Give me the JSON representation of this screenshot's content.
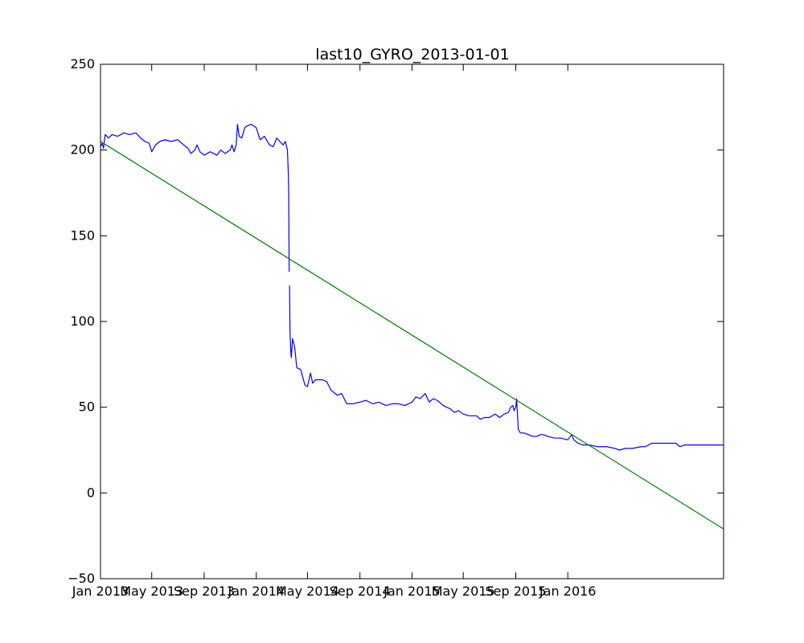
{
  "chart_data": {
    "type": "line",
    "title": "last10_GYRO_2013-01-01",
    "xlabel": "",
    "ylabel": "",
    "x_axis_type": "date",
    "xlim": [
      "2013-01-01",
      "2016-12-31"
    ],
    "ylim": [
      -50,
      250
    ],
    "grid": false,
    "legend": "none",
    "x_ticks": [
      {
        "date": "2013-01-01",
        "label": "Jan 2013"
      },
      {
        "date": "2013-05-01",
        "label": "May 2013"
      },
      {
        "date": "2013-09-01",
        "label": "Sep 2013"
      },
      {
        "date": "2014-01-01",
        "label": "Jan 2014"
      },
      {
        "date": "2014-05-01",
        "label": "May 2014"
      },
      {
        "date": "2014-09-01",
        "label": "Sep 2014"
      },
      {
        "date": "2015-01-01",
        "label": "Jan 2015"
      },
      {
        "date": "2015-05-01",
        "label": "May 2015"
      },
      {
        "date": "2015-09-01",
        "label": "Sep 2015"
      },
      {
        "date": "2016-01-01",
        "label": "Jan 2016"
      }
    ],
    "y_ticks": [
      {
        "value": -50,
        "label": "−50"
      },
      {
        "value": 0,
        "label": "0"
      },
      {
        "value": 50,
        "label": "50"
      },
      {
        "value": 100,
        "label": "100"
      },
      {
        "value": 150,
        "label": "150"
      },
      {
        "value": 200,
        "label": "200"
      },
      {
        "value": 250,
        "label": "250"
      }
    ],
    "series": [
      {
        "color": "#0000ff",
        "points": [
          [
            "2013-01-01",
            202
          ],
          [
            "2013-01-05",
            204
          ],
          [
            "2013-01-08",
            201
          ],
          [
            "2013-01-12",
            209
          ],
          [
            "2013-01-20",
            207
          ],
          [
            "2013-01-28",
            209
          ],
          [
            "2013-02-10",
            208
          ],
          [
            "2013-02-25",
            210
          ],
          [
            "2013-03-10",
            209
          ],
          [
            "2013-03-25",
            210
          ],
          [
            "2013-04-05",
            207
          ],
          [
            "2013-04-15",
            205
          ],
          [
            "2013-04-25",
            204
          ],
          [
            "2013-05-01",
            199
          ],
          [
            "2013-05-10",
            203
          ],
          [
            "2013-05-20",
            205
          ],
          [
            "2013-06-01",
            206
          ],
          [
            "2013-06-15",
            205
          ],
          [
            "2013-07-01",
            206
          ],
          [
            "2013-07-15",
            203
          ],
          [
            "2013-07-25",
            201
          ],
          [
            "2013-08-01",
            198
          ],
          [
            "2013-08-10",
            200
          ],
          [
            "2013-08-15",
            203
          ],
          [
            "2013-08-22",
            199
          ],
          [
            "2013-09-01",
            197
          ],
          [
            "2013-09-15",
            199
          ],
          [
            "2013-10-01",
            197
          ],
          [
            "2013-10-10",
            200
          ],
          [
            "2013-10-20",
            198
          ],
          [
            "2013-11-01",
            200
          ],
          [
            "2013-11-05",
            203
          ],
          [
            "2013-11-10",
            199
          ],
          [
            "2013-11-15",
            203
          ],
          [
            "2013-11-18",
            215
          ],
          [
            "2013-11-22",
            208
          ],
          [
            "2013-11-28",
            207
          ],
          [
            "2013-12-05",
            213
          ],
          [
            "2013-12-10",
            214
          ],
          [
            "2013-12-20",
            215
          ],
          [
            "2014-01-01",
            213
          ],
          [
            "2014-01-10",
            206
          ],
          [
            "2014-01-20",
            208
          ],
          [
            "2014-02-01",
            203
          ],
          [
            "2014-02-10",
            202
          ],
          [
            "2014-02-18",
            207
          ],
          [
            "2014-02-25",
            205
          ],
          [
            "2014-03-05",
            203
          ],
          [
            "2014-03-10",
            205
          ],
          [
            "2014-03-15",
            200
          ],
          [
            "2014-03-17",
            187
          ],
          [
            "2014-03-18",
            176
          ],
          [
            "2014-03-19",
            129
          ]
        ]
      },
      {
        "color": "#0000ff",
        "points": [
          [
            "2014-03-20",
            121
          ],
          [
            "2014-03-21",
            95
          ],
          [
            "2014-03-23",
            82
          ],
          [
            "2014-03-24",
            79
          ],
          [
            "2014-03-27",
            90
          ],
          [
            "2014-04-01",
            85
          ],
          [
            "2014-04-06",
            73
          ],
          [
            "2014-04-15",
            72
          ],
          [
            "2014-04-25",
            63
          ],
          [
            "2014-05-01",
            62
          ],
          [
            "2014-05-08",
            70
          ],
          [
            "2014-05-13",
            64
          ],
          [
            "2014-05-20",
            66
          ],
          [
            "2014-06-05",
            66
          ],
          [
            "2014-06-15",
            65
          ],
          [
            "2014-06-25",
            60
          ],
          [
            "2014-07-10",
            57
          ],
          [
            "2014-07-20",
            58
          ],
          [
            "2014-08-01",
            52
          ],
          [
            "2014-08-15",
            52
          ],
          [
            "2014-09-01",
            53
          ],
          [
            "2014-09-15",
            54
          ],
          [
            "2014-10-01",
            52
          ],
          [
            "2014-10-15",
            53
          ],
          [
            "2014-11-01",
            51
          ],
          [
            "2014-11-15",
            52
          ],
          [
            "2014-12-01",
            52
          ],
          [
            "2014-12-15",
            51
          ],
          [
            "2015-01-01",
            53
          ],
          [
            "2015-01-10",
            56
          ],
          [
            "2015-01-20",
            55
          ],
          [
            "2015-02-01",
            58
          ],
          [
            "2015-02-10",
            53
          ],
          [
            "2015-02-20",
            55
          ],
          [
            "2015-03-01",
            54
          ],
          [
            "2015-03-15",
            51
          ],
          [
            "2015-04-01",
            49
          ],
          [
            "2015-04-10",
            47
          ],
          [
            "2015-04-20",
            48
          ],
          [
            "2015-05-01",
            46
          ],
          [
            "2015-05-15",
            45
          ],
          [
            "2015-06-01",
            45
          ],
          [
            "2015-06-10",
            43
          ],
          [
            "2015-06-20",
            44
          ],
          [
            "2015-07-01",
            44
          ],
          [
            "2015-07-15",
            46
          ],
          [
            "2015-07-25",
            44
          ],
          [
            "2015-08-05",
            46
          ],
          [
            "2015-08-15",
            47
          ],
          [
            "2015-08-20",
            50
          ],
          [
            "2015-08-25",
            51
          ],
          [
            "2015-08-28",
            48
          ],
          [
            "2015-09-01",
            50
          ],
          [
            "2015-09-03",
            55
          ],
          [
            "2015-09-05",
            46
          ],
          [
            "2015-09-07",
            37
          ],
          [
            "2015-09-12",
            35
          ],
          [
            "2015-09-20",
            35
          ],
          [
            "2015-10-01",
            34
          ],
          [
            "2015-10-10",
            33
          ],
          [
            "2015-10-20",
            33
          ],
          [
            "2015-10-28",
            34
          ],
          [
            "2015-11-05",
            34
          ],
          [
            "2015-11-15",
            33
          ],
          [
            "2015-12-01",
            32
          ],
          [
            "2015-12-15",
            32
          ],
          [
            "2016-01-01",
            31
          ],
          [
            "2016-01-10",
            34
          ],
          [
            "2016-01-15",
            31
          ],
          [
            "2016-01-25",
            29
          ],
          [
            "2016-02-05",
            28
          ],
          [
            "2016-02-20",
            28
          ],
          [
            "2016-03-10",
            27
          ],
          [
            "2016-04-01",
            27
          ],
          [
            "2016-04-20",
            26
          ],
          [
            "2016-05-01",
            25
          ],
          [
            "2016-05-15",
            26
          ],
          [
            "2016-06-01",
            26
          ],
          [
            "2016-06-20",
            27
          ],
          [
            "2016-07-01",
            27
          ],
          [
            "2016-07-15",
            29
          ],
          [
            "2016-08-01",
            29
          ],
          [
            "2016-08-20",
            29
          ],
          [
            "2016-09-10",
            29
          ],
          [
            "2016-09-20",
            27
          ],
          [
            "2016-10-01",
            28
          ],
          [
            "2016-10-15",
            28
          ],
          [
            "2016-11-01",
            28
          ],
          [
            "2016-12-01",
            28
          ],
          [
            "2016-12-31",
            28
          ]
        ]
      },
      {
        "color": "#008000",
        "points": [
          [
            "2013-01-01",
            205
          ],
          [
            "2016-12-31",
            -21
          ]
        ]
      }
    ]
  }
}
